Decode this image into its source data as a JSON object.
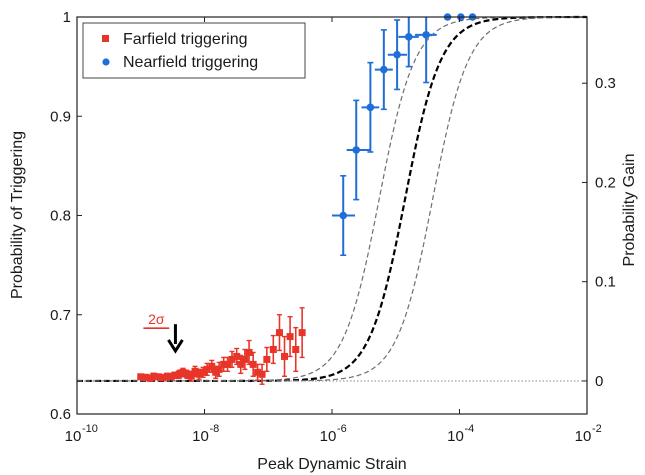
{
  "chart_data": {
    "type": "scatter",
    "xlabel": "Peak Dynamic Strain",
    "ylabel": "Probability of Triggering",
    "y2label": "Probability Gain",
    "xscale": "log",
    "xlim": [
      1e-10,
      0.01
    ],
    "ylim": [
      0.6,
      1.0
    ],
    "y2lim": [
      -0.0333,
      0.3667
    ],
    "x_ticks": [
      {
        "value": 1e-10,
        "base": "10",
        "exp": "-10"
      },
      {
        "value": 1e-08,
        "base": "10",
        "exp": "-8"
      },
      {
        "value": 1e-06,
        "base": "10",
        "exp": "-6"
      },
      {
        "value": 0.0001,
        "base": "10",
        "exp": "-4"
      },
      {
        "value": 0.01,
        "base": "10",
        "exp": "-2"
      }
    ],
    "y_ticks": [
      {
        "value": 0.6,
        "label": "0.6"
      },
      {
        "value": 0.7,
        "label": "0.7"
      },
      {
        "value": 0.8,
        "label": "0.8"
      },
      {
        "value": 0.9,
        "label": "0.9"
      },
      {
        "value": 1.0,
        "label": "1"
      }
    ],
    "y2_ticks": [
      {
        "value": 0,
        "label": "0"
      },
      {
        "value": 0.1,
        "label": "0.1"
      },
      {
        "value": 0.2,
        "label": "0.2"
      },
      {
        "value": 0.3,
        "label": "0.3"
      }
    ],
    "baseline": 0.6333,
    "legend_position": "top-left",
    "annotation": {
      "text": "2σ",
      "x1": 1.1e-09,
      "x2": 2.8e-09,
      "y": 0.6865,
      "color": "#e8352a"
    },
    "arrow": {
      "x": 3.5e-09,
      "y_from": 0.6905,
      "y_to": 0.6635
    },
    "series": [
      {
        "name": "Farfield triggering",
        "marker": "square",
        "color": "#e8352a",
        "points": [
          {
            "x": 1e-09,
            "y": 0.6375,
            "err": 0.002
          },
          {
            "x": 1.2e-09,
            "y": 0.637,
            "err": 0.002
          },
          {
            "x": 1.4e-09,
            "y": 0.636,
            "err": 0.003
          },
          {
            "x": 1.6e-09,
            "y": 0.638,
            "err": 0.003
          },
          {
            "x": 1.9e-09,
            "y": 0.6375,
            "err": 0.002
          },
          {
            "x": 2.2e-09,
            "y": 0.6365,
            "err": 0.003
          },
          {
            "x": 2.6e-09,
            "y": 0.638,
            "err": 0.003
          },
          {
            "x": 3e-09,
            "y": 0.6375,
            "err": 0.002
          },
          {
            "x": 3.4e-09,
            "y": 0.639,
            "err": 0.003
          },
          {
            "x": 4e-09,
            "y": 0.64,
            "err": 0.004
          },
          {
            "x": 4.6e-09,
            "y": 0.642,
            "err": 0.004
          },
          {
            "x": 5.3e-09,
            "y": 0.64,
            "err": 0.004
          },
          {
            "x": 6.2e-09,
            "y": 0.638,
            "err": 0.005
          },
          {
            "x": 7.1e-09,
            "y": 0.643,
            "err": 0.005
          },
          {
            "x": 8.2e-09,
            "y": 0.64,
            "err": 0.005
          },
          {
            "x": 9.5e-09,
            "y": 0.642,
            "err": 0.005
          },
          {
            "x": 1.1e-08,
            "y": 0.645,
            "err": 0.006
          },
          {
            "x": 1.3e-08,
            "y": 0.648,
            "err": 0.006
          },
          {
            "x": 1.5e-08,
            "y": 0.642,
            "err": 0.006
          },
          {
            "x": 1.7e-08,
            "y": 0.645,
            "err": 0.007
          },
          {
            "x": 2e-08,
            "y": 0.65,
            "err": 0.007
          },
          {
            "x": 2.3e-08,
            "y": 0.65,
            "err": 0.007
          },
          {
            "x": 2.7e-08,
            "y": 0.655,
            "err": 0.008
          },
          {
            "x": 3.2e-08,
            "y": 0.658,
            "err": 0.008
          },
          {
            "x": 3.7e-08,
            "y": 0.65,
            "err": 0.009
          },
          {
            "x": 4.3e-08,
            "y": 0.655,
            "err": 0.01
          },
          {
            "x": 5e-08,
            "y": 0.662,
            "err": 0.012
          },
          {
            "x": 5.8e-08,
            "y": 0.65,
            "err": 0.012
          },
          {
            "x": 6.8e-08,
            "y": 0.642,
            "err": 0.008
          },
          {
            "x": 8e-08,
            "y": 0.64,
            "err": 0.01
          },
          {
            "x": 9.5e-08,
            "y": 0.655,
            "err": 0.012
          },
          {
            "x": 1.2e-07,
            "y": 0.665,
            "err": 0.014
          },
          {
            "x": 1.5e-07,
            "y": 0.682,
            "err": 0.018
          },
          {
            "x": 1.8e-07,
            "y": 0.658,
            "err": 0.02
          },
          {
            "x": 2.2e-07,
            "y": 0.678,
            "err": 0.02
          },
          {
            "x": 2.7e-07,
            "y": 0.665,
            "err": 0.022
          },
          {
            "x": 3.4e-07,
            "y": 0.682,
            "err": 0.025
          }
        ]
      },
      {
        "name": "Nearfield triggering",
        "marker": "circle",
        "color": "#1f6fd6",
        "points": [
          {
            "x": 1.5e-06,
            "y": 0.8,
            "err": 0.04,
            "xlo": 1e-06,
            "xhi": 2.3e-06
          },
          {
            "x": 2.4e-06,
            "y": 0.866,
            "err": 0.05,
            "xlo": 1.7e-06,
            "xhi": 3.9e-06
          },
          {
            "x": 4e-06,
            "y": 0.909,
            "err": 0.045,
            "xlo": 2.9e-06,
            "xhi": 5.5e-06
          },
          {
            "x": 6.5e-06,
            "y": 0.947,
            "err": 0.04,
            "xlo": 4.7e-06,
            "xhi": 9e-06
          },
          {
            "x": 1.05e-05,
            "y": 0.962,
            "err": 0.035,
            "xlo": 7.5e-06,
            "xhi": 1.5e-05
          },
          {
            "x": 1.6e-05,
            "y": 0.98,
            "err": 0.03,
            "xlo": 1.1e-05,
            "xhi": 2.3e-05
          },
          {
            "x": 3e-05,
            "y": 0.982,
            "err": 0.048,
            "xlo": 2e-05,
            "xhi": 4.4e-05
          },
          {
            "x": 6.5e-05,
            "y": 1.0,
            "err": 0,
            "xlo": 6.5e-05,
            "xhi": 6.5e-05
          },
          {
            "x": 0.000105,
            "y": 1.0,
            "err": 0,
            "xlo": 0.000105,
            "xhi": 0.000105
          },
          {
            "x": 0.00016,
            "y": 1.0,
            "err": 0,
            "xlo": 0.00016,
            "xhi": 0.00016
          }
        ]
      }
    ],
    "model_curves": [
      {
        "style": "dashed-thick",
        "color": "#000000",
        "width": 2.2,
        "dash": "6,3",
        "p0": 0.6333,
        "x50": 1.4e-05,
        "k": 1.55
      },
      {
        "style": "dashed-thin",
        "color": "#6e6e6e",
        "width": 1.2,
        "dash": "5,3",
        "p0": 0.6333,
        "x50": 5.5e-06,
        "k": 1.55
      },
      {
        "style": "dashed-thin",
        "color": "#6e6e6e",
        "width": 1.2,
        "dash": "5,3",
        "p0": 0.6333,
        "x50": 3.8e-05,
        "k": 1.55
      }
    ]
  }
}
